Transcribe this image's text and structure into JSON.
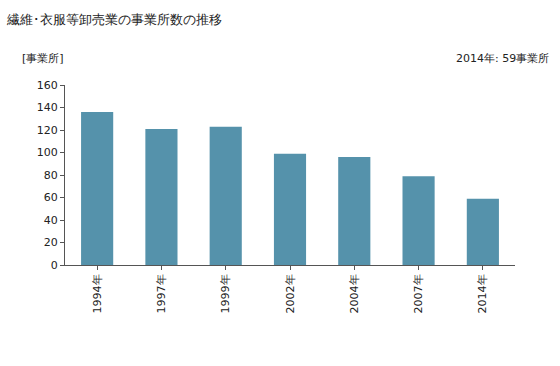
{
  "chart_data": {
    "type": "bar",
    "title": "繊維･衣服等卸売業の事業所数の推移",
    "y_label": "[事業所]",
    "annotation": "2014年: 59事業所",
    "categories": [
      "1994年",
      "1997年",
      "1999年",
      "2002年",
      "2004年",
      "2007年",
      "2014年"
    ],
    "values": [
      136,
      121,
      123,
      99,
      96,
      79,
      59
    ],
    "color": "#5592ab",
    "ylim": [
      0,
      160
    ],
    "yticks": [
      0,
      20,
      40,
      60,
      80,
      100,
      120,
      140,
      160
    ],
    "grid": false
  }
}
